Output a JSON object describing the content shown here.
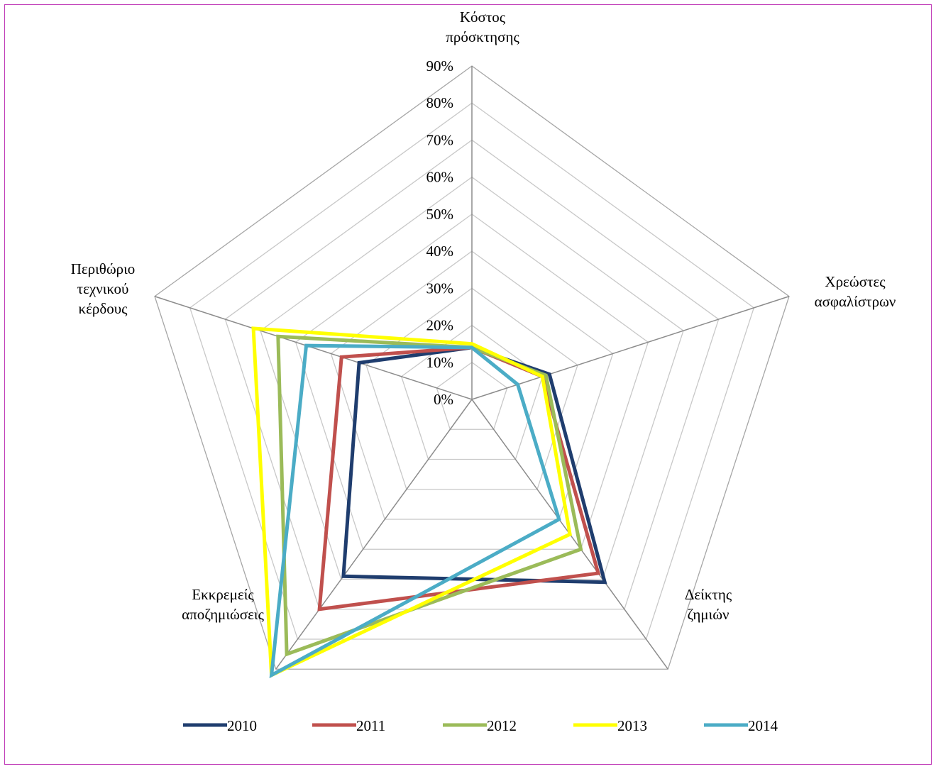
{
  "chart_data": {
    "type": "radar",
    "axes": [
      [
        "Κόστος",
        "πρόσκτησης"
      ],
      [
        "Χρεώστες",
        "ασφαλίστρων"
      ],
      [
        "Δείκτης",
        "ζημιών"
      ],
      [
        "Εκκρεμείς",
        "αποζημιώσεις"
      ],
      [
        "Περιθώριο",
        "τεχνικού",
        "κέρδους"
      ]
    ],
    "tick_labels": [
      "0%",
      "10%",
      "20%",
      "30%",
      "40%",
      "50%",
      "60%",
      "70%",
      "80%",
      "90%"
    ],
    "rlim": [
      0,
      90
    ],
    "grid": true,
    "legend_position": "bottom",
    "series": [
      {
        "name": "2010",
        "color": "#1f3d6e",
        "values": [
          14,
          22,
          61,
          59,
          32
        ]
      },
      {
        "name": "2011",
        "color": "#c0504d",
        "values": [
          14,
          20,
          58,
          70,
          37
        ]
      },
      {
        "name": "2012",
        "color": "#9bbb59",
        "values": [
          14,
          21,
          50,
          85,
          55
        ]
      },
      {
        "name": "2013",
        "color": "#ffff00",
        "values": [
          15,
          20,
          45,
          92,
          62
        ]
      },
      {
        "name": "2014",
        "color": "#4bacc6",
        "values": [
          14,
          13,
          40,
          92,
          47
        ]
      }
    ]
  }
}
